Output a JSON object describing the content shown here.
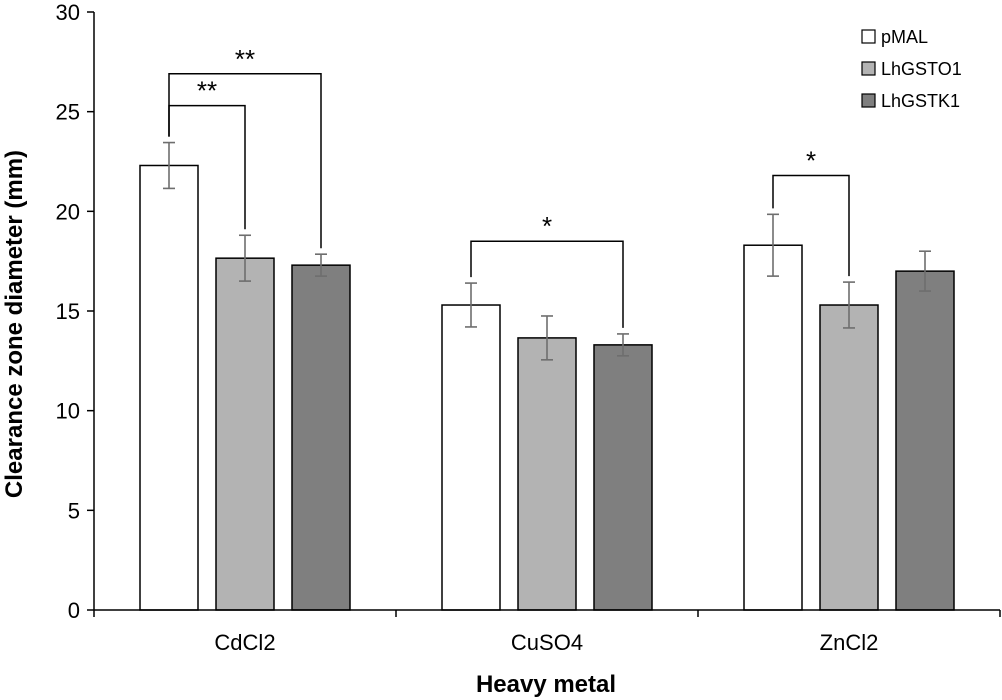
{
  "chart_data": {
    "type": "bar",
    "xlabel": "Heavy metal",
    "ylabel": "Clearance zone diameter (mm)",
    "ylim": [
      0,
      30
    ],
    "yticks": [
      0,
      5,
      10,
      15,
      20,
      25,
      30
    ],
    "categories": [
      "CdCl2",
      "CuSO4",
      "ZnCl2"
    ],
    "series": [
      {
        "name": "pMAL",
        "color": "#ffffff",
        "values": [
          22.3,
          15.3,
          18.3
        ],
        "errors": [
          1.15,
          1.1,
          1.55
        ]
      },
      {
        "name": "LhGSTO1",
        "color": "#b3b3b3",
        "values": [
          17.65,
          13.65,
          15.3
        ],
        "errors": [
          1.15,
          1.1,
          1.15
        ]
      },
      {
        "name": "LhGSTK1",
        "color": "#7f7f7f",
        "values": [
          17.3,
          13.3,
          17.0
        ],
        "errors": [
          0.55,
          0.55,
          1.0
        ]
      }
    ],
    "legend": {
      "position": "top-right"
    },
    "significance": [
      {
        "category": 0,
        "from": 0,
        "to": 1,
        "label": "**",
        "bracket_y": 25.3
      },
      {
        "category": 0,
        "from": 0,
        "to": 2,
        "label": "**",
        "bracket_y": 26.9
      },
      {
        "category": 1,
        "from": 0,
        "to": 2,
        "label": "*",
        "bracket_y": 18.5
      },
      {
        "category": 2,
        "from": 0,
        "to": 1,
        "label": "*",
        "bracket_y": 21.8
      }
    ]
  }
}
